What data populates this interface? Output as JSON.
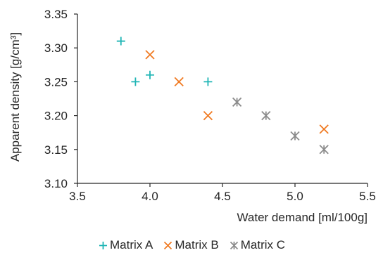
{
  "chart_data": {
    "type": "scatter",
    "title": "",
    "xlabel": "Water demand [ml/100g]",
    "ylabel": "Apparent density [g/cm³]",
    "xlim": [
      3.5,
      5.5
    ],
    "ylim": [
      3.1,
      3.35
    ],
    "x_ticks": [
      "3.5",
      "4.0",
      "4.5",
      "5.0",
      "5.5"
    ],
    "y_ticks": [
      "3.10",
      "3.15",
      "3.20",
      "3.25",
      "3.30",
      "3.35"
    ],
    "grid": false,
    "legend_position": "bottom",
    "series": [
      {
        "name": "Matrix A",
        "marker": "plus",
        "color": "#1fb5b5",
        "points": [
          [
            3.8,
            3.31
          ],
          [
            3.9,
            3.25
          ],
          [
            4.0,
            3.26
          ],
          [
            4.4,
            3.25
          ]
        ]
      },
      {
        "name": "Matrix B",
        "marker": "x",
        "color": "#f07a22",
        "points": [
          [
            4.0,
            3.29
          ],
          [
            4.2,
            3.25
          ],
          [
            4.4,
            3.2
          ],
          [
            5.2,
            3.18
          ]
        ]
      },
      {
        "name": "Matrix C",
        "marker": "asterisk",
        "color": "#8c8c8c",
        "points": [
          [
            4.6,
            3.22
          ],
          [
            4.8,
            3.2
          ],
          [
            5.0,
            3.17
          ],
          [
            5.2,
            3.15
          ]
        ]
      }
    ]
  }
}
